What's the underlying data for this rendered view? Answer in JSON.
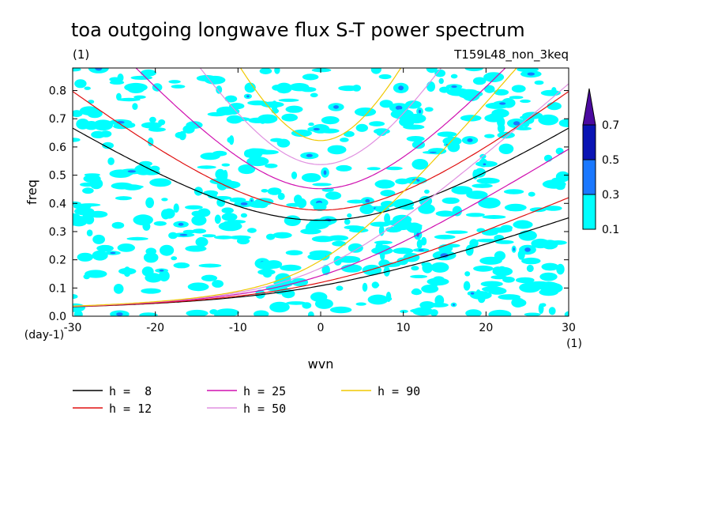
{
  "chart_data": {
    "type": "heatmap",
    "title": "toa outgoing longwave flux S-T power spectrum",
    "subtitle_left": "(1)",
    "subtitle_right": "T159L48_non_3keq",
    "xlabel": "wvn",
    "ylabel": "freq",
    "x_unit": "(1)",
    "y_unit": "(day-1)",
    "xlim": [
      -30,
      30
    ],
    "ylim": [
      0,
      0.88
    ],
    "x_ticks": [
      "-30",
      "-20",
      "-10",
      "0",
      "10",
      "20",
      "30"
    ],
    "x_tick_values": [
      -30,
      -20,
      -10,
      0,
      10,
      20,
      30
    ],
    "y_ticks": [
      "0.0",
      "0.1",
      "0.2",
      "0.3",
      "0.4",
      "0.5",
      "0.6",
      "0.7",
      "0.8"
    ],
    "y_tick_values": [
      0,
      0.1,
      0.2,
      0.3,
      0.4,
      0.5,
      0.6,
      0.7,
      0.8
    ],
    "colorbar": {
      "levels": [
        "0.1",
        "0.3",
        "0.5",
        "0.7"
      ],
      "colors": [
        "#00ffff",
        "#1a78ff",
        "#0a14b4",
        "#4b0aa0"
      ]
    },
    "contour_fill_color": "#00ffff",
    "equivalent_depths": [
      {
        "label": "h =  8",
        "value": 8,
        "color": "#000000"
      },
      {
        "label": "h = 12",
        "value": 12,
        "color": "#e01010"
      },
      {
        "label": "h = 25",
        "value": 25,
        "color": "#d010b0"
      },
      {
        "label": "h = 50",
        "value": 50,
        "color": "#e090e0"
      },
      {
        "label": "h = 90",
        "value": 90,
        "color": "#f0c800"
      }
    ]
  }
}
